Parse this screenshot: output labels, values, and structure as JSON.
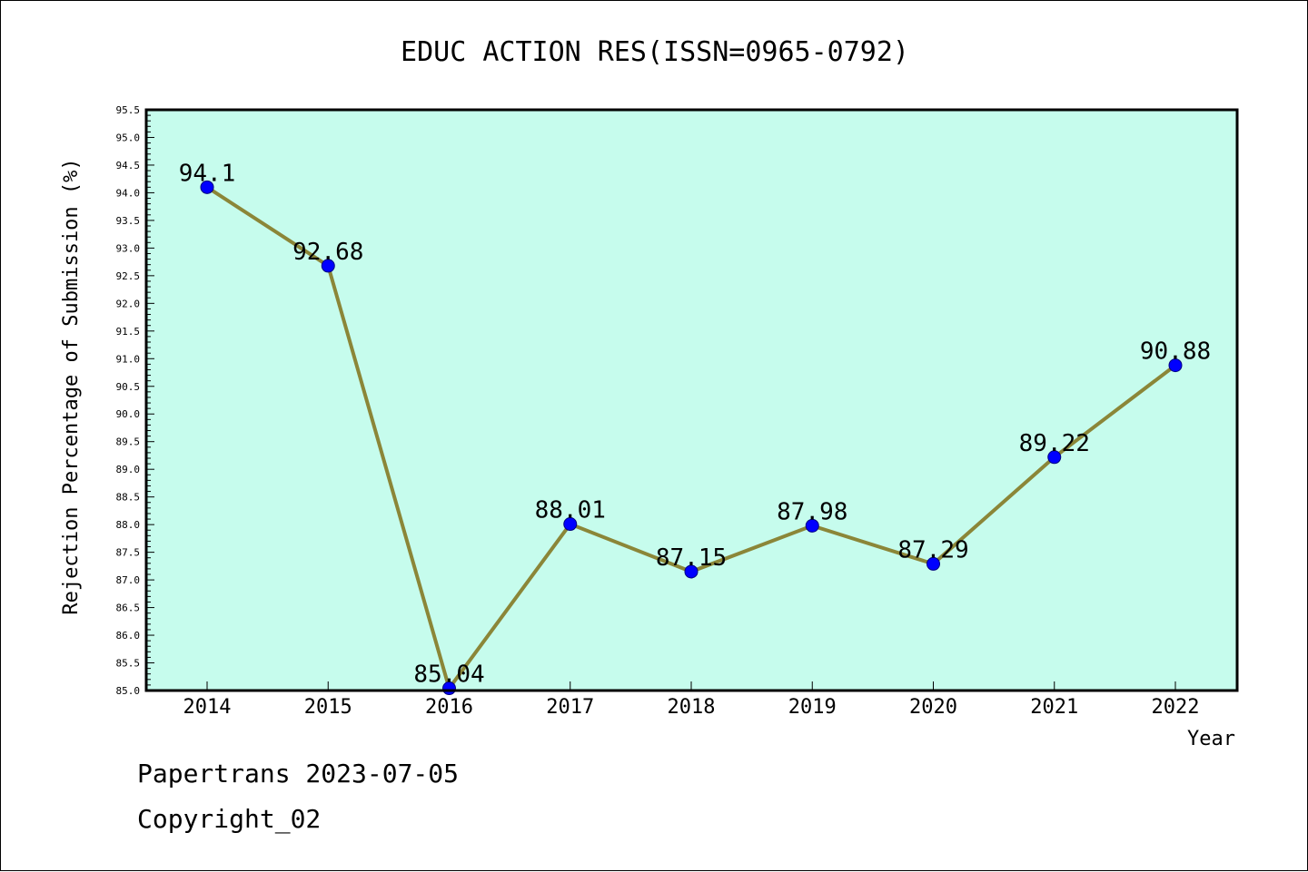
{
  "chart_data": {
    "type": "line",
    "title": "EDUC ACTION RES(ISSN=0965-0792)",
    "xlabel": "Year",
    "ylabel": "Rejection Percentage of Submission (%)",
    "x": [
      "2014",
      "2015",
      "2016",
      "2017",
      "2018",
      "2019",
      "2020",
      "2021",
      "2022"
    ],
    "series": [
      {
        "values": [
          94.1,
          92.68,
          85.04,
          88.01,
          87.15,
          87.98,
          87.29,
          89.22,
          90.88
        ],
        "labels": [
          "94.1",
          "92.68",
          "85.04",
          "88.01",
          "87.15",
          "87.98",
          "87.29",
          "89.22",
          "90.88"
        ]
      }
    ],
    "ylim": [
      85.0,
      95.5
    ],
    "yticks": [
      "85.0",
      "85.5",
      "86.0",
      "86.5",
      "87.0",
      "87.5",
      "88.0",
      "88.5",
      "89.0",
      "89.5",
      "90.0",
      "90.5",
      "91.0",
      "91.5",
      "92.0",
      "92.5",
      "93.0",
      "93.5",
      "94.0",
      "94.5",
      "95.0",
      "95.5"
    ],
    "grid": false,
    "colors": {
      "plot_background": "#c6fced",
      "line": "#8b8638",
      "marker": "#0000ff"
    }
  },
  "footer": {
    "line1": "Papertrans 2023-07-05",
    "line2": "Copyright_02"
  }
}
